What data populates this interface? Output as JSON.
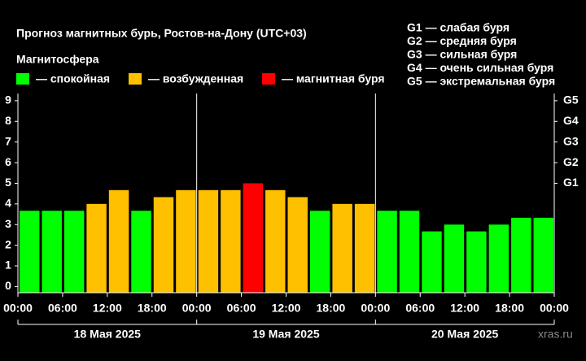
{
  "chart_data": {
    "type": "bar",
    "title": "Прогноз магнитных бурь, Ростов-на-Дону (UTC+03)",
    "subtitle": "Магнитосфера",
    "legend": [
      {
        "name": "— спокойная",
        "color": "#00ff00"
      },
      {
        "name": "— возбужденная",
        "color": "#ffc000"
      },
      {
        "name": "— магнитная буря",
        "color": "#ff0000"
      }
    ],
    "storm_scale": [
      "G1 — слабая буря",
      "G2 — средняя буря",
      "G3 — сильная буря",
      "G4 — очень сильная буря",
      "G5 — экстремальная буря"
    ],
    "x": [
      0,
      3,
      6,
      9,
      12,
      15,
      18,
      21,
      24,
      27,
      30,
      33,
      36,
      39,
      42,
      45,
      48,
      51,
      54,
      57,
      60,
      63,
      66,
      69
    ],
    "values": [
      3.67,
      3.67,
      3.67,
      4,
      4.67,
      3.67,
      4.33,
      4.67,
      4.67,
      4.67,
      5,
      4.67,
      4.33,
      3.67,
      4,
      4,
      3.67,
      3.67,
      2.67,
      3,
      2.67,
      3,
      3.33,
      3.33
    ],
    "colors": [
      "#00ff00",
      "#00ff00",
      "#00ff00",
      "#ffc000",
      "#ffc000",
      "#00ff00",
      "#ffc000",
      "#ffc000",
      "#ffc000",
      "#ffc000",
      "#ff0000",
      "#ffc000",
      "#ffc000",
      "#00ff00",
      "#ffc000",
      "#ffc000",
      "#00ff00",
      "#00ff00",
      "#00ff00",
      "#00ff00",
      "#00ff00",
      "#00ff00",
      "#00ff00",
      "#00ff00"
    ],
    "xlim": [
      0,
      72
    ],
    "xticks": [
      {
        "value": 0,
        "label": "00:00"
      },
      {
        "value": 6,
        "label": "06:00"
      },
      {
        "value": 12,
        "label": "12:00"
      },
      {
        "value": 18,
        "label": "18:00"
      },
      {
        "value": 24,
        "label": "00:00"
      },
      {
        "value": 30,
        "label": "06:00"
      },
      {
        "value": 36,
        "label": "12:00"
      },
      {
        "value": 42,
        "label": "18:00"
      },
      {
        "value": 48,
        "label": "00:00"
      },
      {
        "value": 54,
        "label": "06:00"
      },
      {
        "value": 60,
        "label": "12:00"
      },
      {
        "value": 66,
        "label": "18:00"
      },
      {
        "value": 72,
        "label": "00:00"
      }
    ],
    "days": [
      "18 Мая 2025",
      "19 Мая 2025",
      "20 Мая 2025"
    ],
    "ylim": [
      -0.3,
      9.35
    ],
    "yticks": [
      0,
      1,
      2,
      3,
      4,
      5,
      6,
      7,
      8,
      9
    ],
    "y2lim": [
      -0.3,
      9.35
    ],
    "y2ticks": [
      {
        "value": 5,
        "label": "G1"
      },
      {
        "value": 6,
        "label": "G2"
      },
      {
        "value": 7,
        "label": "G3"
      },
      {
        "value": 8,
        "label": "G4"
      },
      {
        "value": 9,
        "label": "G5"
      }
    ],
    "watermark": "xras.ru"
  }
}
